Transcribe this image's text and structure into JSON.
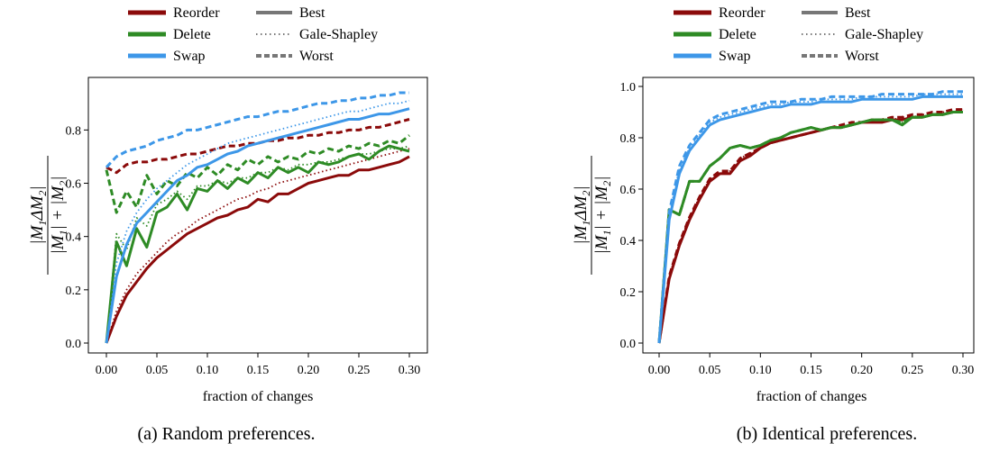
{
  "colors": {
    "reorder": "#8b0a0a",
    "delete": "#2e8b25",
    "swap": "#3d97e8",
    "legend_gray": "#777777"
  },
  "legend": {
    "reorder": "Reorder",
    "delete": "Delete",
    "swap": "Swap",
    "best": "Best",
    "gale": "Gale-Shapley",
    "worst": "Worst"
  },
  "chart_data": [
    {
      "type": "line",
      "caption": "(a) Random preferences.",
      "xlabel": "fraction of changes",
      "ylabel": "|M1 ΔM2| / (|M1| + |M2|)",
      "xlim": [
        0,
        0.3
      ],
      "ylim": [
        0,
        0.95
      ],
      "xticks": [
        "0.00",
        "0.05",
        "0.10",
        "0.15",
        "0.20",
        "0.25",
        "0.30"
      ],
      "yticks": [
        "0.0",
        "0.2",
        "0.4",
        "0.6",
        "0.8"
      ],
      "x": [
        0.0,
        0.01,
        0.02,
        0.03,
        0.04,
        0.05,
        0.06,
        0.07,
        0.08,
        0.09,
        0.1,
        0.11,
        0.12,
        0.13,
        0.14,
        0.15,
        0.16,
        0.17,
        0.18,
        0.19,
        0.2,
        0.21,
        0.22,
        0.23,
        0.24,
        0.25,
        0.26,
        0.27,
        0.28,
        0.29,
        0.3
      ],
      "series": [
        {
          "name": "Reorder",
          "style": "best",
          "color_key": "reorder",
          "values": [
            0.0,
            0.1,
            0.18,
            0.23,
            0.28,
            0.32,
            0.35,
            0.38,
            0.41,
            0.43,
            0.45,
            0.47,
            0.48,
            0.5,
            0.51,
            0.54,
            0.53,
            0.56,
            0.56,
            0.58,
            0.6,
            0.61,
            0.62,
            0.63,
            0.63,
            0.65,
            0.65,
            0.66,
            0.67,
            0.68,
            0.7
          ]
        },
        {
          "name": "Reorder",
          "style": "gale",
          "color_key": "reorder",
          "values": [
            0.0,
            0.12,
            0.2,
            0.26,
            0.3,
            0.34,
            0.38,
            0.41,
            0.43,
            0.46,
            0.48,
            0.5,
            0.52,
            0.54,
            0.55,
            0.57,
            0.58,
            0.6,
            0.61,
            0.62,
            0.63,
            0.64,
            0.65,
            0.66,
            0.67,
            0.68,
            0.69,
            0.7,
            0.71,
            0.72,
            0.73
          ]
        },
        {
          "name": "Reorder",
          "style": "worst",
          "color_key": "reorder",
          "values": [
            0.66,
            0.64,
            0.67,
            0.68,
            0.68,
            0.69,
            0.69,
            0.7,
            0.71,
            0.71,
            0.72,
            0.73,
            0.74,
            0.74,
            0.75,
            0.75,
            0.76,
            0.76,
            0.77,
            0.77,
            0.78,
            0.78,
            0.79,
            0.79,
            0.8,
            0.8,
            0.81,
            0.81,
            0.82,
            0.83,
            0.84
          ]
        },
        {
          "name": "Delete",
          "style": "best",
          "color_key": "delete",
          "values": [
            0.0,
            0.38,
            0.29,
            0.43,
            0.36,
            0.49,
            0.51,
            0.56,
            0.5,
            0.58,
            0.57,
            0.61,
            0.58,
            0.62,
            0.6,
            0.64,
            0.62,
            0.66,
            0.64,
            0.66,
            0.64,
            0.68,
            0.67,
            0.68,
            0.7,
            0.71,
            0.69,
            0.72,
            0.74,
            0.73,
            0.72
          ]
        },
        {
          "name": "Delete",
          "style": "gale",
          "color_key": "delete",
          "values": [
            0.0,
            0.41,
            0.35,
            0.47,
            0.44,
            0.52,
            0.54,
            0.57,
            0.54,
            0.59,
            0.59,
            0.61,
            0.6,
            0.62,
            0.62,
            0.64,
            0.64,
            0.66,
            0.65,
            0.67,
            0.67,
            0.68,
            0.68,
            0.69,
            0.7,
            0.71,
            0.71,
            0.72,
            0.73,
            0.73,
            0.74
          ]
        },
        {
          "name": "Delete",
          "style": "worst",
          "color_key": "delete",
          "values": [
            0.65,
            0.49,
            0.57,
            0.51,
            0.63,
            0.56,
            0.61,
            0.59,
            0.64,
            0.62,
            0.66,
            0.63,
            0.67,
            0.65,
            0.69,
            0.67,
            0.7,
            0.68,
            0.7,
            0.69,
            0.72,
            0.71,
            0.73,
            0.72,
            0.74,
            0.73,
            0.75,
            0.74,
            0.76,
            0.75,
            0.78
          ]
        },
        {
          "name": "Swap",
          "style": "best",
          "color_key": "swap",
          "values": [
            0.0,
            0.25,
            0.37,
            0.45,
            0.49,
            0.53,
            0.57,
            0.61,
            0.63,
            0.66,
            0.67,
            0.69,
            0.71,
            0.72,
            0.74,
            0.75,
            0.76,
            0.77,
            0.78,
            0.79,
            0.8,
            0.81,
            0.82,
            0.83,
            0.84,
            0.84,
            0.85,
            0.86,
            0.86,
            0.87,
            0.88
          ]
        },
        {
          "name": "Swap",
          "style": "gale",
          "color_key": "swap",
          "values": [
            0.0,
            0.3,
            0.42,
            0.49,
            0.54,
            0.58,
            0.61,
            0.64,
            0.67,
            0.69,
            0.71,
            0.73,
            0.75,
            0.76,
            0.77,
            0.78,
            0.79,
            0.8,
            0.81,
            0.82,
            0.83,
            0.84,
            0.85,
            0.86,
            0.87,
            0.87,
            0.88,
            0.89,
            0.9,
            0.9,
            0.91
          ]
        },
        {
          "name": "Swap",
          "style": "worst",
          "color_key": "swap",
          "values": [
            0.66,
            0.7,
            0.72,
            0.73,
            0.74,
            0.76,
            0.77,
            0.78,
            0.8,
            0.8,
            0.81,
            0.82,
            0.83,
            0.84,
            0.85,
            0.85,
            0.86,
            0.87,
            0.87,
            0.88,
            0.89,
            0.9,
            0.9,
            0.91,
            0.91,
            0.92,
            0.92,
            0.93,
            0.93,
            0.94,
            0.94
          ]
        }
      ]
    },
    {
      "type": "line",
      "caption": "(b) Identical preferences.",
      "xlabel": "fraction of changes",
      "ylabel": "|M1 ΔM2| / (|M1| + |M2|)",
      "xlim": [
        0,
        0.3
      ],
      "ylim": [
        0,
        1.02
      ],
      "xticks": [
        "0.00",
        "0.05",
        "0.10",
        "0.15",
        "0.20",
        "0.25",
        "0.30"
      ],
      "yticks": [
        "0.0",
        "0.2",
        "0.4",
        "0.6",
        "0.8",
        "1.0"
      ],
      "x": [
        0.0,
        0.01,
        0.02,
        0.03,
        0.04,
        0.05,
        0.06,
        0.07,
        0.08,
        0.09,
        0.1,
        0.11,
        0.12,
        0.13,
        0.14,
        0.15,
        0.16,
        0.17,
        0.18,
        0.19,
        0.2,
        0.21,
        0.22,
        0.23,
        0.24,
        0.25,
        0.26,
        0.27,
        0.28,
        0.29,
        0.3
      ],
      "series": [
        {
          "name": "Reorder",
          "style": "best",
          "color_key": "reorder",
          "values": [
            0.0,
            0.25,
            0.38,
            0.48,
            0.56,
            0.63,
            0.66,
            0.66,
            0.71,
            0.73,
            0.76,
            0.78,
            0.79,
            0.8,
            0.81,
            0.82,
            0.83,
            0.84,
            0.84,
            0.85,
            0.86,
            0.86,
            0.86,
            0.87,
            0.87,
            0.88,
            0.88,
            0.89,
            0.89,
            0.9,
            0.9
          ]
        },
        {
          "name": "Reorder",
          "style": "gale",
          "color_key": "reorder",
          "values": [
            0.0,
            0.26,
            0.39,
            0.49,
            0.57,
            0.64,
            0.66,
            0.67,
            0.72,
            0.74,
            0.76,
            0.78,
            0.79,
            0.8,
            0.81,
            0.82,
            0.83,
            0.84,
            0.85,
            0.85,
            0.86,
            0.86,
            0.87,
            0.87,
            0.88,
            0.88,
            0.89,
            0.89,
            0.9,
            0.9,
            0.91
          ]
        },
        {
          "name": "Reorder",
          "style": "worst",
          "color_key": "reorder",
          "values": [
            0.0,
            0.26,
            0.39,
            0.49,
            0.57,
            0.64,
            0.67,
            0.67,
            0.72,
            0.74,
            0.76,
            0.78,
            0.79,
            0.8,
            0.81,
            0.82,
            0.83,
            0.84,
            0.85,
            0.86,
            0.86,
            0.87,
            0.87,
            0.88,
            0.88,
            0.89,
            0.89,
            0.9,
            0.9,
            0.91,
            0.91
          ]
        },
        {
          "name": "Delete",
          "style": "best",
          "color_key": "delete",
          "values": [
            0.0,
            0.52,
            0.5,
            0.63,
            0.63,
            0.69,
            0.72,
            0.76,
            0.77,
            0.76,
            0.77,
            0.79,
            0.8,
            0.82,
            0.83,
            0.84,
            0.83,
            0.84,
            0.84,
            0.85,
            0.86,
            0.87,
            0.87,
            0.87,
            0.85,
            0.88,
            0.88,
            0.89,
            0.89,
            0.9,
            0.9
          ]
        },
        {
          "name": "Delete",
          "style": "gale",
          "color_key": "delete",
          "values": [
            0.0,
            0.52,
            0.5,
            0.63,
            0.63,
            0.69,
            0.72,
            0.76,
            0.77,
            0.76,
            0.77,
            0.79,
            0.8,
            0.82,
            0.83,
            0.84,
            0.83,
            0.84,
            0.84,
            0.85,
            0.86,
            0.87,
            0.87,
            0.87,
            0.86,
            0.88,
            0.88,
            0.89,
            0.89,
            0.9,
            0.9
          ]
        },
        {
          "name": "Delete",
          "style": "worst",
          "color_key": "delete",
          "values": [
            0.0,
            0.52,
            0.5,
            0.63,
            0.63,
            0.69,
            0.72,
            0.76,
            0.77,
            0.76,
            0.77,
            0.79,
            0.8,
            0.82,
            0.83,
            0.84,
            0.83,
            0.84,
            0.84,
            0.85,
            0.86,
            0.87,
            0.87,
            0.87,
            0.86,
            0.88,
            0.88,
            0.89,
            0.89,
            0.9,
            0.9
          ]
        },
        {
          "name": "Swap",
          "style": "best",
          "color_key": "swap",
          "values": [
            0.0,
            0.48,
            0.66,
            0.75,
            0.8,
            0.85,
            0.87,
            0.88,
            0.89,
            0.9,
            0.91,
            0.92,
            0.92,
            0.93,
            0.93,
            0.93,
            0.94,
            0.94,
            0.94,
            0.94,
            0.95,
            0.95,
            0.95,
            0.95,
            0.95,
            0.95,
            0.96,
            0.96,
            0.96,
            0.96,
            0.96
          ]
        },
        {
          "name": "Swap",
          "style": "gale",
          "color_key": "swap",
          "values": [
            0.0,
            0.5,
            0.68,
            0.76,
            0.81,
            0.86,
            0.88,
            0.89,
            0.9,
            0.91,
            0.92,
            0.93,
            0.93,
            0.94,
            0.94,
            0.94,
            0.95,
            0.95,
            0.95,
            0.95,
            0.96,
            0.96,
            0.96,
            0.96,
            0.96,
            0.96,
            0.97,
            0.97,
            0.97,
            0.97,
            0.97
          ]
        },
        {
          "name": "Swap",
          "style": "worst",
          "color_key": "swap",
          "values": [
            0.0,
            0.51,
            0.69,
            0.77,
            0.82,
            0.87,
            0.89,
            0.9,
            0.91,
            0.92,
            0.93,
            0.94,
            0.94,
            0.94,
            0.95,
            0.95,
            0.95,
            0.96,
            0.96,
            0.96,
            0.96,
            0.96,
            0.97,
            0.97,
            0.97,
            0.97,
            0.97,
            0.97,
            0.98,
            0.98,
            0.98
          ]
        }
      ]
    }
  ]
}
